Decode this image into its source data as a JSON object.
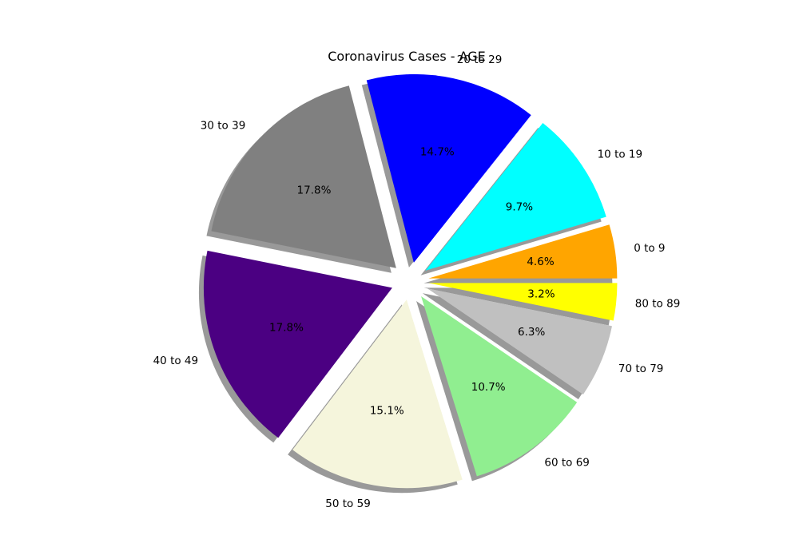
{
  "chart_data": {
    "type": "pie",
    "title": "Coronavirus Cases - AGE",
    "categories": [
      "0 to 9",
      "10 to 19",
      "20 to 29",
      "30 to 39",
      "40 to 49",
      "50 to 59",
      "60 to 69",
      "70 to 79",
      "80 to 89"
    ],
    "values": [
      4.6,
      9.7,
      14.7,
      17.8,
      17.8,
      15.1,
      10.7,
      6.3,
      3.2
    ],
    "value_labels": [
      "4.6%",
      "9.7%",
      "14.7%",
      "17.8%",
      "17.8%",
      "15.1%",
      "10.7%",
      "6.3%",
      "3.2%"
    ],
    "colors": [
      "#FFA500",
      "#00FFFF",
      "#0000FF",
      "#808080",
      "#4B0082",
      "#F5F5DC",
      "#90EE90",
      "#C0C0C0",
      "#FFFF00"
    ],
    "shadow": true,
    "exploded": true,
    "legend": "none"
  }
}
